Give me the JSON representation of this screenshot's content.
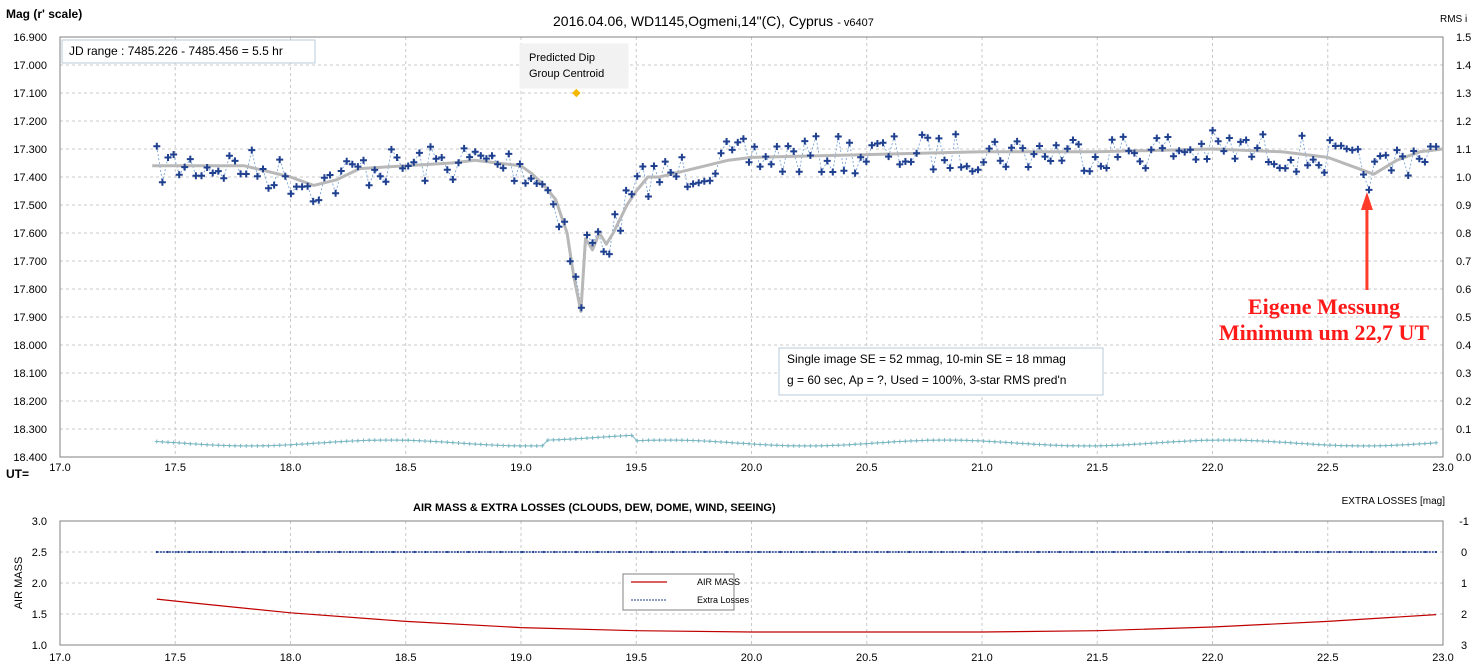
{
  "chart_data": [
    {
      "type": "scatter",
      "title": "2016.04.06,  WD1145,Ogmeni,14\"(C),  Cyprus",
      "title_suffix": "- v6407",
      "ylabel": "Mag (r' scale)",
      "y2label": "RMS i",
      "xlabel": "UT=",
      "xlim": [
        17.0,
        23.0
      ],
      "ylim": [
        16.9,
        18.4
      ],
      "y_inverted": true,
      "y2lim": [
        0.0,
        1.5
      ],
      "grid": true,
      "x_ticks": [
        "17.0",
        "17.5",
        "18.0",
        "18.5",
        "19.0",
        "19.5",
        "20.0",
        "20.5",
        "21.0",
        "21.5",
        "22.0",
        "22.5",
        "23.0"
      ],
      "y_ticks": [
        "16.900",
        "17.000",
        "17.100",
        "17.200",
        "17.300",
        "17.400",
        "17.500",
        "17.600",
        "17.700",
        "17.800",
        "17.900",
        "18.000",
        "18.100",
        "18.200",
        "18.300",
        "18.400"
      ],
      "y2_ticks": [
        "1.5",
        "1.4",
        "1.3",
        "1.2",
        "1.1",
        "1.0",
        "0.9",
        "0.8",
        "0.7",
        "0.6",
        "0.5",
        "0.4",
        "0.3",
        "0.2",
        "0.1",
        "0.0"
      ],
      "info_box_1": "JD range  : 7485.226 - 7485.456  = 5.5 hr",
      "info_box_2_line1": "Single image SE = 52 mmag, 10-min SE = 18 mmag",
      "info_box_2_line2": "g = 60 sec, Ap = ?, Used = 100%, 3-star RMS pred'n",
      "predicted_label_line1": "Predicted Dip",
      "predicted_label_line2": "Group Centroid",
      "predicted_point": {
        "x": 19.24,
        "y": 17.1
      },
      "annotation_line1": "Eigene Messung",
      "annotation_line2": "Minimum um 22,7 UT",
      "annotation_arrow_x": 22.67,
      "colors": {
        "points": "#1f3f8f",
        "trend": "#b8b8b8",
        "rms": "#79b6c2",
        "predicted": "#f5b800",
        "annotation": "#ff1a1a"
      },
      "trend": {
        "x": [
          17.4,
          17.8,
          18.0,
          18.1,
          18.2,
          18.3,
          18.5,
          18.7,
          18.8,
          19.0,
          19.05,
          19.1,
          19.15,
          19.2,
          19.23,
          19.26,
          19.28,
          19.31,
          19.34,
          19.37,
          19.4,
          19.43,
          19.46,
          19.5,
          19.55,
          19.6,
          19.7,
          19.8,
          19.9,
          20.0,
          20.5,
          21.0,
          21.5,
          22.0,
          22.3,
          22.5,
          22.6,
          22.7,
          22.8,
          22.9,
          23.0
        ],
        "y": [
          17.36,
          17.36,
          17.4,
          17.43,
          17.41,
          17.37,
          17.36,
          17.35,
          17.34,
          17.36,
          17.39,
          17.43,
          17.48,
          17.6,
          17.76,
          17.88,
          17.62,
          17.66,
          17.6,
          17.64,
          17.6,
          17.55,
          17.5,
          17.45,
          17.4,
          17.4,
          17.38,
          17.36,
          17.34,
          17.33,
          17.32,
          17.31,
          17.31,
          17.3,
          17.31,
          17.33,
          17.36,
          17.39,
          17.34,
          17.31,
          17.3
        ]
      },
      "points": {
        "x_start": 17.42,
        "x_end": 22.97,
        "count": 230
      },
      "rms_series": {
        "x_start": 17.42,
        "x_end": 22.97,
        "count": 230,
        "mean": 0.05,
        "amplitude": 0.015
      }
    },
    {
      "type": "line",
      "title": "AIR MASS & EXTRA LOSSES (CLOUDS, DEW, DOME, WIND, SEEING)",
      "ylabel": "AIR MASS",
      "y2label": "EXTRA LOSSES [mag]",
      "xlim": [
        17.0,
        23.0
      ],
      "ylim": [
        1.0,
        3.0
      ],
      "y2lim": [
        -1,
        3
      ],
      "y2_inverted": true,
      "grid": true,
      "legend_placement": "center",
      "x_ticks": [
        "17.0",
        "17.5",
        "18.0",
        "18.5",
        "19.0",
        "19.5",
        "20.0",
        "20.5",
        "21.0",
        "21.5",
        "22.0",
        "22.5",
        "23.0"
      ],
      "y_ticks": [
        "3.0",
        "2.5",
        "2.0",
        "1.5",
        "1.0"
      ],
      "y2_ticks": [
        "-1",
        "0",
        "1",
        "2",
        "3"
      ],
      "series": [
        {
          "name": "AIR MASS",
          "color": "#c00000",
          "x": [
            17.42,
            17.6,
            18.0,
            18.5,
            19.0,
            19.5,
            20.0,
            20.5,
            21.0,
            21.5,
            22.0,
            22.5,
            22.97
          ],
          "values": [
            1.74,
            1.67,
            1.52,
            1.38,
            1.28,
            1.23,
            1.21,
            1.21,
            1.21,
            1.23,
            1.29,
            1.38,
            1.49
          ]
        },
        {
          "name": "Extra Losses",
          "color": "#1f3f8f",
          "x": [
            17.42,
            22.97
          ],
          "values": [
            0,
            0
          ]
        }
      ]
    }
  ]
}
